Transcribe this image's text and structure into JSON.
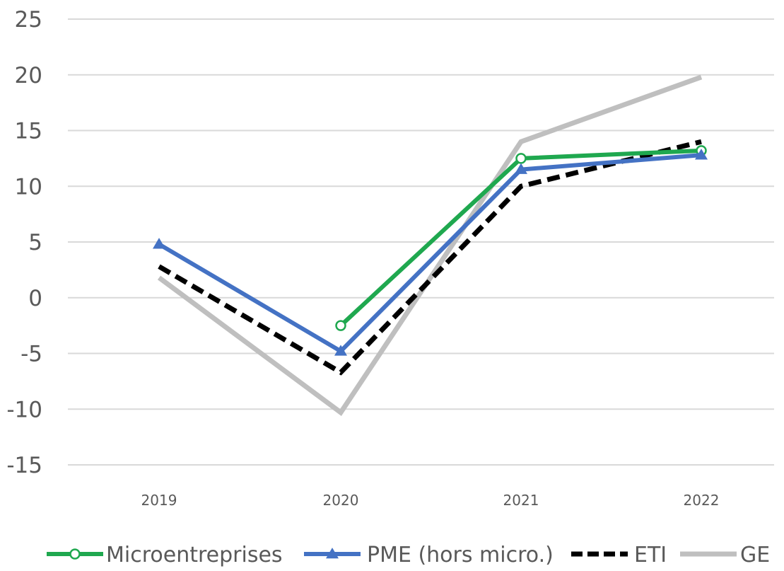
{
  "chart_data": {
    "type": "line",
    "title": "",
    "xlabel": "",
    "ylabel": "",
    "categories": [
      "2019",
      "2020",
      "2021",
      "2022"
    ],
    "ylim": [
      -15,
      25
    ],
    "yticks": [
      25,
      20,
      15,
      10,
      5,
      0,
      -5,
      -10,
      -15
    ],
    "grid": true,
    "legend_position": "bottom",
    "series": [
      {
        "name": "Microentreprises",
        "values": [
          null,
          -2.5,
          12.5,
          13.2
        ],
        "color": "#1fa84f",
        "dash": "solid",
        "marker": "circle"
      },
      {
        "name": "PME (hors micro.)",
        "values": [
          4.8,
          -4.8,
          11.5,
          12.8
        ],
        "color": "#4472c4",
        "dash": "solid",
        "marker": "triangle"
      },
      {
        "name": "ETI",
        "values": [
          2.8,
          -6.7,
          10.0,
          14.0
        ],
        "color": "#000000",
        "dash": "dashed",
        "marker": "none"
      },
      {
        "name": "GE",
        "values": [
          1.8,
          -10.3,
          14.0,
          19.8
        ],
        "color": "#bfbfbf",
        "dash": "solid",
        "marker": "none"
      }
    ]
  }
}
